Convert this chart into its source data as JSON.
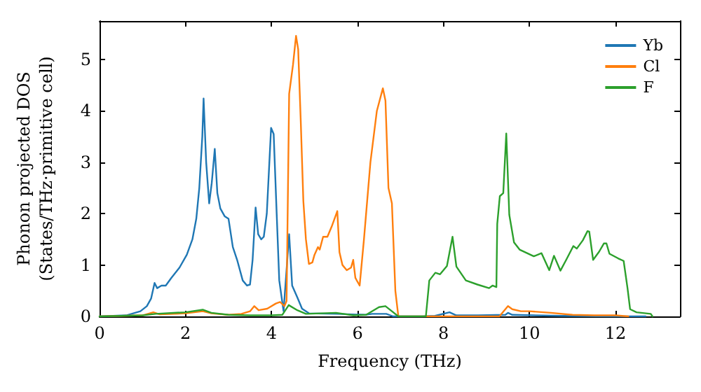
{
  "chart_data": {
    "type": "line",
    "xlabel": "Frequency (THz)",
    "ylabel": "Phonon projected DOS\n(States/THz·primitive cell)",
    "xlim": [
      0,
      13.5
    ],
    "ylim": [
      0,
      5.75
    ],
    "xticks": [
      0,
      2,
      4,
      6,
      8,
      10,
      12
    ],
    "yticks": [
      0,
      1,
      2,
      3,
      4,
      5
    ],
    "grid": false,
    "legend": "top right",
    "marker": "none",
    "line_style": "solid",
    "series": [
      {
        "name": "Yb",
        "color": "#1f77b4",
        "x": [
          0,
          0.62,
          0.95,
          1.1,
          1.2,
          1.28,
          1.34,
          1.44,
          1.54,
          1.67,
          1.86,
          2.03,
          2.16,
          2.25,
          2.32,
          2.39,
          2.42,
          2.48,
          2.55,
          2.61,
          2.68,
          2.74,
          2.81,
          2.91,
          3.0,
          3.1,
          3.2,
          3.33,
          3.43,
          3.5,
          3.56,
          3.63,
          3.69,
          3.76,
          3.82,
          3.89,
          3.99,
          4.05,
          4.12,
          4.18,
          4.28,
          4.41,
          4.48,
          4.61,
          4.71,
          4.87,
          5.52,
          6.18,
          6.34,
          6.67,
          6.83,
          7.5,
          7.8,
          8.14,
          8.3,
          8.8,
          9.44,
          9.5,
          9.6,
          10.75,
          12.0,
          12.7
        ],
        "values": [
          0,
          0.02,
          0.1,
          0.2,
          0.35,
          0.65,
          0.55,
          0.6,
          0.6,
          0.75,
          0.95,
          1.2,
          1.5,
          1.9,
          2.5,
          3.5,
          4.24,
          3.0,
          2.2,
          2.6,
          3.26,
          2.4,
          2.1,
          1.95,
          1.9,
          1.35,
          1.1,
          0.7,
          0.6,
          0.62,
          1.1,
          2.12,
          1.6,
          1.5,
          1.55,
          2.0,
          3.67,
          3.55,
          2.0,
          0.7,
          0.1,
          1.6,
          0.6,
          0.35,
          0.15,
          0.06,
          0.05,
          0.03,
          0.05,
          0.05,
          0,
          0,
          0.01,
          0.08,
          0.02,
          0.02,
          0.03,
          0.07,
          0.03,
          0.01,
          0,
          0
        ]
      },
      {
        "name": "Cl",
        "color": "#ff7f0e",
        "x": [
          0,
          1.0,
          1.25,
          1.4,
          2.0,
          2.4,
          2.6,
          3.0,
          3.3,
          3.5,
          3.6,
          3.7,
          3.9,
          4.1,
          4.2,
          4.3,
          4.35,
          4.41,
          4.5,
          4.57,
          4.62,
          4.68,
          4.74,
          4.8,
          4.87,
          4.95,
          5.0,
          5.08,
          5.12,
          5.2,
          5.3,
          5.4,
          5.53,
          5.58,
          5.65,
          5.75,
          5.85,
          5.9,
          5.95,
          6.05,
          6.15,
          6.3,
          6.45,
          6.59,
          6.65,
          6.72,
          6.8,
          6.88,
          6.95,
          9.3,
          9.35,
          9.5,
          9.6,
          9.8,
          10.0,
          10.5,
          11.0,
          11.5,
          12.0,
          12.3
        ],
        "values": [
          0,
          0.02,
          0.08,
          0.04,
          0.06,
          0.1,
          0.06,
          0.03,
          0.05,
          0.1,
          0.2,
          0.12,
          0.15,
          0.25,
          0.28,
          0.2,
          0.3,
          4.33,
          4.9,
          5.46,
          5.2,
          3.8,
          2.25,
          1.5,
          1.02,
          1.05,
          1.2,
          1.35,
          1.3,
          1.55,
          1.55,
          1.75,
          2.05,
          1.25,
          1.0,
          0.9,
          0.95,
          1.1,
          0.75,
          0.6,
          1.5,
          3.0,
          4.0,
          4.44,
          4.2,
          2.5,
          2.2,
          0.5,
          0,
          0,
          0.05,
          0.2,
          0.14,
          0.1,
          0.1,
          0.07,
          0.03,
          0.02,
          0.02,
          0
        ]
      },
      {
        "name": "F",
        "color": "#2ca02c",
        "x": [
          0,
          1.0,
          1.3,
          2.0,
          2.4,
          2.6,
          3.0,
          3.5,
          4.0,
          4.25,
          4.4,
          4.6,
          4.8,
          5.5,
          5.9,
          6.2,
          6.5,
          6.65,
          6.8,
          6.95,
          7.59,
          7.67,
          7.81,
          7.92,
          8.08,
          8.21,
          8.3,
          8.52,
          8.79,
          9.06,
          9.14,
          9.23,
          9.25,
          9.31,
          9.39,
          9.46,
          9.53,
          9.64,
          9.77,
          10.1,
          10.28,
          10.46,
          10.57,
          10.72,
          10.86,
          11.02,
          11.1,
          11.24,
          11.35,
          11.39,
          11.48,
          11.62,
          11.73,
          11.79,
          11.86,
          12.06,
          12.19,
          12.28,
          12.34,
          12.49,
          12.82,
          12.86
        ],
        "values": [
          0,
          0.02,
          0.05,
          0.08,
          0.13,
          0.07,
          0.03,
          0.02,
          0.02,
          0.03,
          0.22,
          0.12,
          0.05,
          0.07,
          0.02,
          0.03,
          0.18,
          0.2,
          0.1,
          0,
          0,
          0.7,
          0.85,
          0.82,
          0.98,
          1.55,
          0.97,
          0.7,
          0.62,
          0.55,
          0.6,
          0.57,
          1.8,
          2.34,
          2.4,
          3.56,
          1.98,
          1.44,
          1.3,
          1.17,
          1.23,
          0.9,
          1.18,
          0.89,
          1.11,
          1.37,
          1.32,
          1.48,
          1.66,
          1.65,
          1.1,
          1.26,
          1.42,
          1.42,
          1.22,
          1.13,
          1.08,
          0.55,
          0.14,
          0.08,
          0.05,
          0
        ]
      }
    ]
  }
}
